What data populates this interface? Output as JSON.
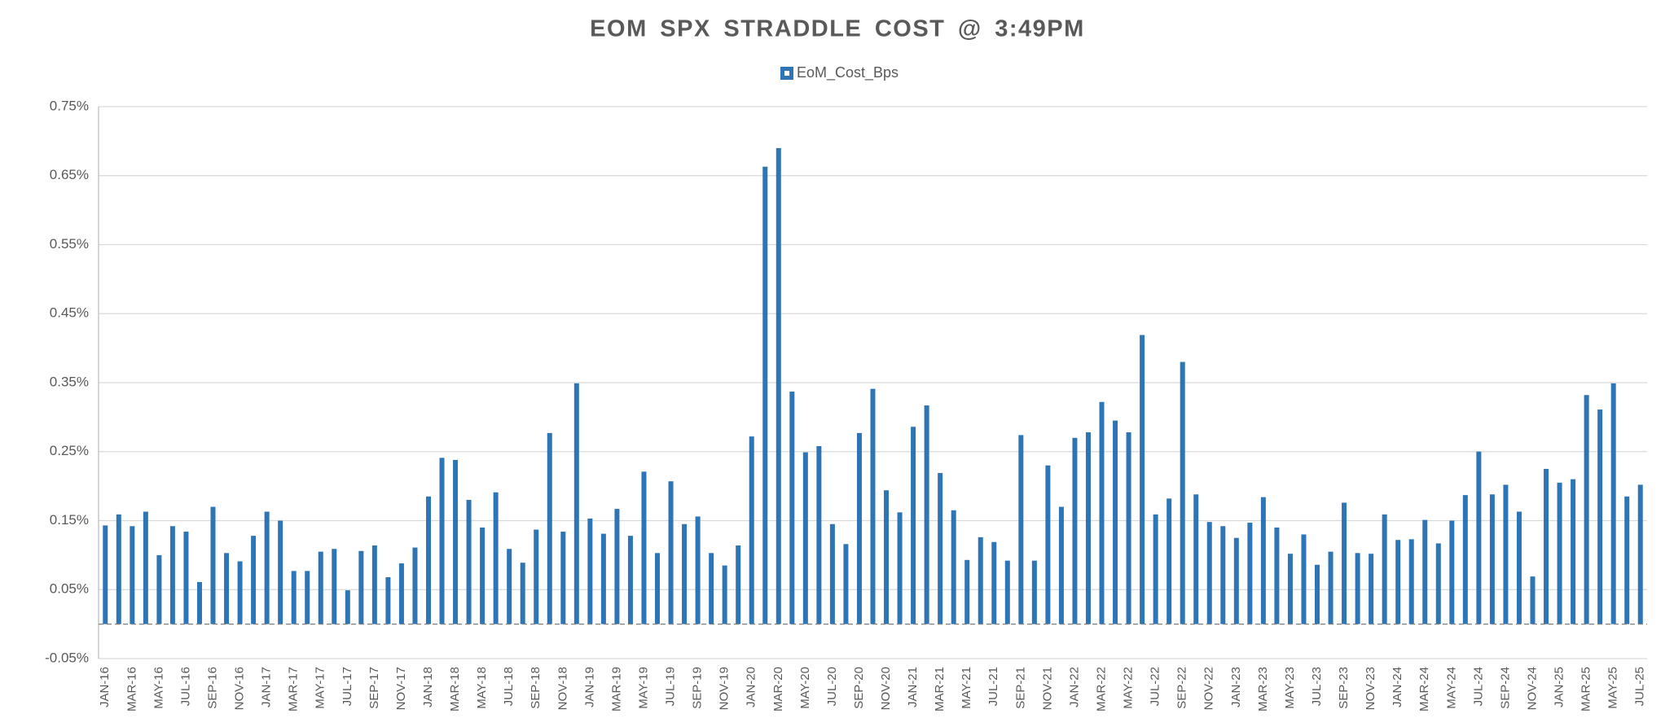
{
  "chart_data": {
    "type": "bar",
    "title": "EOM SPX STRADDLE COST @ 3:49PM",
    "series": [
      {
        "name": "EoM_Cost_Bps",
        "color": "#2e75b6",
        "values": [
          0.143,
          0.159,
          0.142,
          0.163,
          0.1,
          0.142,
          0.134,
          0.061,
          0.17,
          0.103,
          0.091,
          0.128,
          0.163,
          0.15,
          0.077,
          0.077,
          0.105,
          0.109,
          0.049,
          0.106,
          0.114,
          0.068,
          0.088,
          0.111,
          0.185,
          0.241,
          0.238,
          0.18,
          0.14,
          0.191,
          0.109,
          0.089,
          0.137,
          0.277,
          0.134,
          0.349,
          0.153,
          0.131,
          0.167,
          0.128,
          0.221,
          0.103,
          0.207,
          0.145,
          0.156,
          0.103,
          0.085,
          0.114,
          0.272,
          0.663,
          0.69,
          0.337,
          0.249,
          0.258,
          0.145,
          0.116,
          0.277,
          0.341,
          0.194,
          0.162,
          0.286,
          0.317,
          0.219,
          0.165,
          0.093,
          0.126,
          0.119,
          0.092,
          0.274,
          0.092,
          0.23,
          0.17,
          0.27,
          0.278,
          0.322,
          0.295,
          0.278,
          0.419,
          0.159,
          0.182,
          0.38,
          0.188,
          0.148,
          0.142,
          0.125,
          0.147,
          0.184,
          0.14,
          0.102,
          0.13,
          0.086,
          0.105,
          0.176,
          0.103,
          0.102,
          0.159,
          0.122,
          0.123,
          0.151,
          0.117,
          0.15,
          0.187,
          0.25,
          0.188,
          0.202,
          0.163,
          0.069,
          0.225,
          0.205,
          0.21,
          0.332,
          0.311,
          0.349,
          0.185,
          0.202
        ]
      }
    ],
    "categories": [
      "JAN-16",
      null,
      "MAR-16",
      null,
      "MAY-16",
      null,
      "JUL-16",
      null,
      "SEP-16",
      null,
      "NOV-16",
      null,
      "JAN-17",
      null,
      "MAR-17",
      null,
      "MAY-17",
      null,
      "JUL-17",
      null,
      "SEP-17",
      null,
      "NOV-17",
      null,
      "JAN-18",
      null,
      "MAR-18",
      null,
      "MAY-18",
      null,
      "JUL-18",
      null,
      "SEP-18",
      null,
      "NOV-18",
      null,
      "JAN-19",
      null,
      "MAR-19",
      null,
      "MAY-19",
      null,
      "JUL-19",
      null,
      "SEP-19",
      null,
      "NOV-19",
      null,
      "JAN-20",
      null,
      "MAR-20",
      null,
      "MAY-20",
      null,
      "JUL-20",
      null,
      "SEP-20",
      null,
      "NOV-20",
      null,
      "JAN-21",
      null,
      "MAR-21",
      null,
      "MAY-21",
      null,
      "JUL-21",
      null,
      "SEP-21",
      null,
      "NOV-21",
      null,
      "JAN-22",
      null,
      "MAR-22",
      null,
      "MAY-22",
      null,
      "JUL-22",
      null,
      "SEP-22",
      null,
      "NOV-22",
      null,
      "JAN-23",
      null,
      "MAR-23",
      null,
      "MAY-23",
      null,
      "JUL-23",
      null,
      "SEP-23",
      null,
      "NOV-23",
      null,
      "JAN-24",
      null,
      "MAR-24",
      null,
      "MAY-24",
      null,
      "JUL-24",
      null,
      "SEP-24",
      null,
      "NOV-24",
      null,
      "JAN-25",
      null,
      "MAR-25",
      null,
      "MAY-25",
      null,
      "JUL-25"
    ],
    "ylim": [
      -0.05,
      0.75
    ],
    "yticks": [
      {
        "value": -0.05,
        "label": "-0.05%"
      },
      {
        "value": 0.05,
        "label": "0.05%"
      },
      {
        "value": 0.15,
        "label": "0.15%"
      },
      {
        "value": 0.25,
        "label": "0.25%"
      },
      {
        "value": 0.35,
        "label": "0.35%"
      },
      {
        "value": 0.45,
        "label": "0.45%"
      },
      {
        "value": 0.55,
        "label": "0.55%"
      },
      {
        "value": 0.65,
        "label": "0.65%"
      },
      {
        "value": 0.75,
        "label": "0.75%"
      }
    ],
    "grid": true,
    "legend": "top"
  }
}
